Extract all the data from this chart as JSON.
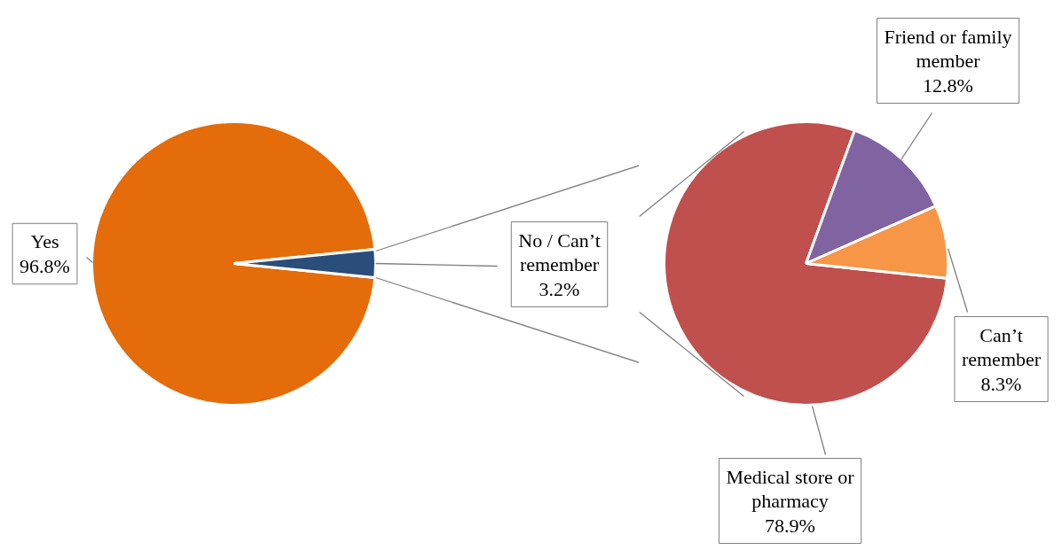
{
  "chart_data": [
    {
      "type": "pie",
      "categories": [
        "Yes",
        "No / Can’t\nremember"
      ],
      "values": [
        96.8,
        3.2
      ],
      "colors": [
        "#e46c0a",
        "#2a4d7a"
      ],
      "value_labels": [
        "96.8%",
        "3.2%"
      ]
    },
    {
      "type": "pie",
      "categories": [
        "Medical store or\npharmacy",
        "Friend or family\nmember",
        "Can’t\nremember"
      ],
      "values": [
        78.9,
        12.8,
        8.3
      ],
      "colors": [
        "#c0504d",
        "#8064a2",
        "#f79646"
      ],
      "value_labels": [
        "78.9%",
        "12.8%",
        "8.3%"
      ]
    }
  ]
}
